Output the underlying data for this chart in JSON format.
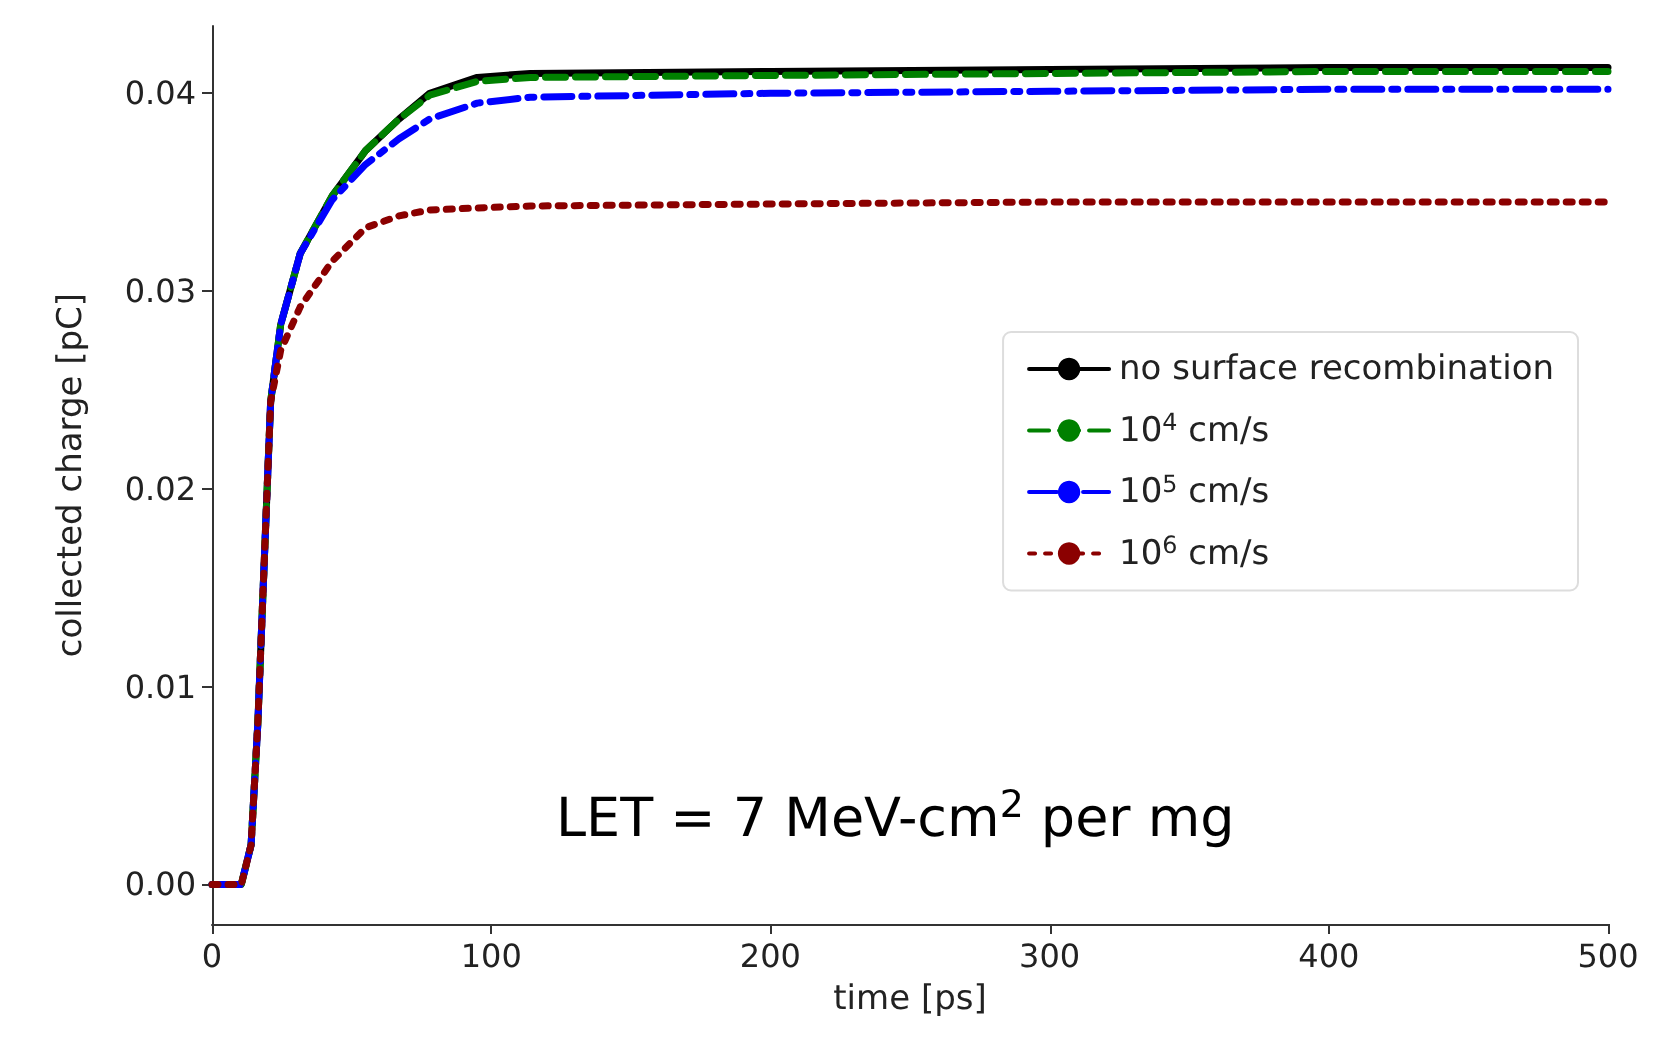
{
  "chart_data": {
    "type": "line",
    "xlabel": "time [ps]",
    "ylabel": "collected charge [pC]",
    "x": [
      0,
      10.5,
      14,
      16.4,
      18.7,
      21,
      24.6,
      31.6,
      43,
      55,
      67,
      78,
      95,
      114,
      200,
      300,
      400,
      500
    ],
    "series": [
      {
        "name": "no surface recombination",
        "color": "#000000",
        "line_style": "solid",
        "values": [
          0,
          0,
          0.002,
          0.0081,
          0.0163,
          0.0244,
          0.0283,
          0.0319,
          0.0348,
          0.0371,
          0.0387,
          0.04,
          0.0408,
          0.041,
          0.0411,
          0.0412,
          0.0413,
          0.0413
        ]
      },
      {
        "name": "10$^{4}$ cm/s",
        "color": "#008000",
        "line_style": "dashed",
        "values": [
          0,
          0,
          0.002,
          0.0081,
          0.0163,
          0.0244,
          0.0283,
          0.0319,
          0.0348,
          0.0371,
          0.0387,
          0.0399,
          0.0406,
          0.0408,
          0.0409,
          0.041,
          0.0411,
          0.0411
        ]
      },
      {
        "name": "10$^{5}$ cm/s",
        "color": "#0000ff",
        "line_style": "dashdot",
        "values": [
          0,
          0,
          0.002,
          0.0081,
          0.0163,
          0.0244,
          0.0283,
          0.0319,
          0.0346,
          0.0364,
          0.0377,
          0.0387,
          0.0395,
          0.0398,
          0.04,
          0.0401,
          0.0402,
          0.0402
        ]
      },
      {
        "name": "10$^{6}$ cm/s",
        "color": "#8b0000",
        "line_style": "dotted",
        "values": [
          0,
          0,
          0.002,
          0.0081,
          0.0163,
          0.0244,
          0.027,
          0.0292,
          0.0315,
          0.0332,
          0.0338,
          0.0341,
          0.0342,
          0.0343,
          0.0344,
          0.0345,
          0.0345,
          0.0345
        ]
      }
    ],
    "xlim": [
      0,
      500
    ],
    "xticks": [
      0,
      100,
      200,
      300,
      400,
      500
    ],
    "ylim": [
      -0.002,
      0.0434
    ],
    "yticks": [
      {
        "value": 0,
        "label": "0.00"
      },
      {
        "value": 0.01,
        "label": "0.01"
      },
      {
        "value": 0.02,
        "label": "0.02"
      },
      {
        "value": 0.03,
        "label": "0.03"
      },
      {
        "value": 0.04,
        "label": "0.04"
      }
    ],
    "grid": false,
    "legend": "right",
    "marker": "none",
    "annotations": [
      "LET = 7 MeV-cm$^{2}$ per mg"
    ]
  }
}
